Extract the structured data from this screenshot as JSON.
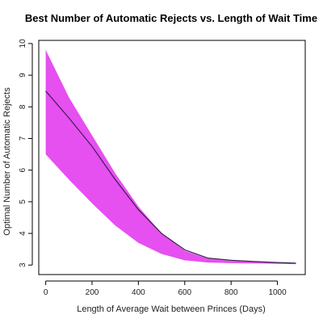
{
  "chart_data": {
    "type": "area",
    "title": "Best Number of Automatic Rejects vs. Length of Wait Time",
    "xlabel": "Length of Average Wait between Princes (Days)",
    "ylabel": "Optimal Number of Automatic Rejects",
    "xlim": [
      -30,
      1120
    ],
    "ylim": [
      2.7,
      10.1
    ],
    "x_ticks": [
      0,
      200,
      400,
      600,
      800,
      1000
    ],
    "y_ticks": [
      3,
      4,
      5,
      6,
      7,
      8,
      9,
      10
    ],
    "x_tick_labels": [
      "0",
      "200",
      "400",
      "600",
      "800",
      "1000"
    ],
    "y_tick_labels": [
      "3",
      "4",
      "5",
      "6",
      "7",
      "8",
      "9",
      "10"
    ],
    "grid": false,
    "band_color": "#e64ff0",
    "line_color": "#3c1e4e",
    "series": [
      {
        "kind": "band",
        "x": [
          0,
          100,
          200,
          300,
          400,
          500,
          600,
          700,
          800,
          900,
          1000,
          1080
        ],
        "lower": [
          6.5,
          5.7,
          4.95,
          4.25,
          3.7,
          3.35,
          3.15,
          3.08,
          3.06,
          3.05,
          3.04,
          3.03
        ],
        "upper": [
          9.8,
          8.3,
          7.1,
          5.9,
          4.85,
          4.0,
          3.45,
          3.2,
          3.13,
          3.1,
          3.07,
          3.05
        ]
      },
      {
        "kind": "line",
        "x": [
          0,
          100,
          200,
          300,
          400,
          500,
          600,
          700,
          800,
          900,
          1000,
          1080
        ],
        "y": [
          8.5,
          7.65,
          6.75,
          5.7,
          4.75,
          4.0,
          3.48,
          3.22,
          3.15,
          3.11,
          3.08,
          3.06
        ]
      }
    ]
  }
}
